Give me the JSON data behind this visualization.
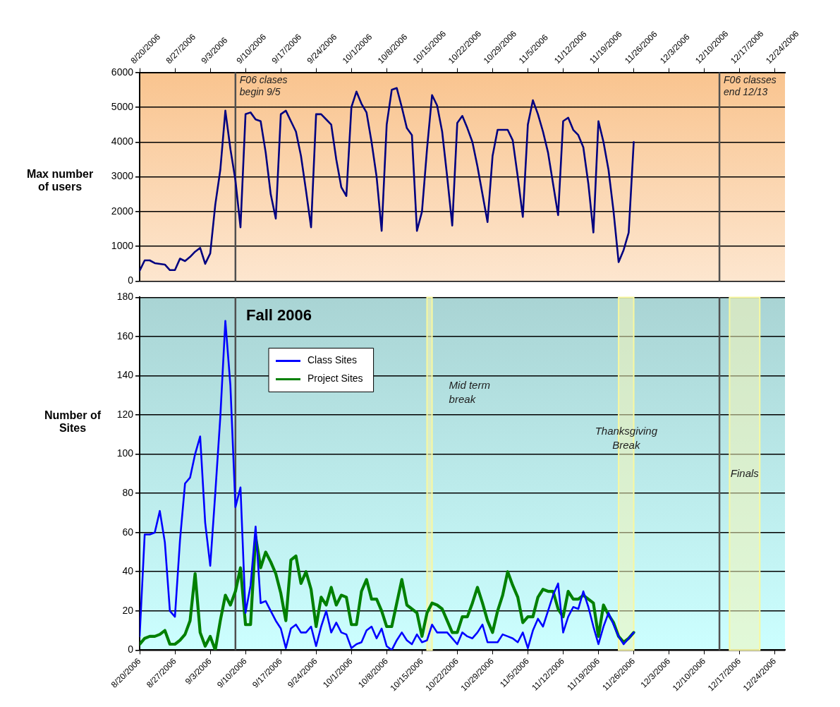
{
  "chart_data": [
    {
      "type": "line",
      "ylabel": "Max number of users",
      "x": [
        "2006-08-20",
        "2006-08-21",
        "2006-08-22",
        "2006-08-23",
        "2006-08-24",
        "2006-08-25",
        "2006-08-26",
        "2006-08-27",
        "2006-08-28",
        "2006-08-29",
        "2006-08-30",
        "2006-08-31",
        "2006-09-01",
        "2006-09-02",
        "2006-09-03",
        "2006-09-04",
        "2006-09-05",
        "2006-09-06",
        "2006-09-07",
        "2006-09-08",
        "2006-09-09",
        "2006-09-10",
        "2006-09-11",
        "2006-09-12",
        "2006-09-13",
        "2006-09-14",
        "2006-09-15",
        "2006-09-16",
        "2006-09-17",
        "2006-09-18",
        "2006-09-19",
        "2006-09-20",
        "2006-09-21",
        "2006-09-22",
        "2006-09-23",
        "2006-09-24",
        "2006-09-25",
        "2006-09-26",
        "2006-09-27",
        "2006-09-28",
        "2006-09-29",
        "2006-09-30",
        "2006-10-01",
        "2006-10-02",
        "2006-10-03",
        "2006-10-04",
        "2006-10-05",
        "2006-10-06",
        "2006-10-07",
        "2006-10-08",
        "2006-10-09",
        "2006-10-10",
        "2006-10-11",
        "2006-10-12",
        "2006-10-13",
        "2006-10-14",
        "2006-10-15",
        "2006-10-16",
        "2006-10-17",
        "2006-10-18",
        "2006-10-19",
        "2006-10-20",
        "2006-10-21",
        "2006-10-22",
        "2006-10-23",
        "2006-10-24",
        "2006-10-25",
        "2006-10-26",
        "2006-10-27",
        "2006-10-28",
        "2006-10-29",
        "2006-10-30",
        "2006-10-31",
        "2006-11-01",
        "2006-11-02",
        "2006-11-03",
        "2006-11-04",
        "2006-11-05",
        "2006-11-06",
        "2006-11-07",
        "2006-11-08",
        "2006-11-09",
        "2006-11-10",
        "2006-11-11",
        "2006-11-12",
        "2006-11-13",
        "2006-11-14",
        "2006-11-15",
        "2006-11-16",
        "2006-11-17",
        "2006-11-18",
        "2006-11-19",
        "2006-11-20",
        "2006-11-21",
        "2006-11-22",
        "2006-11-23",
        "2006-11-24",
        "2006-11-25",
        "2006-11-26"
      ],
      "series": [
        {
          "color": "#000080",
          "values": [
            300,
            600,
            600,
            520,
            500,
            480,
            320,
            320,
            650,
            580,
            700,
            850,
            960,
            500,
            800,
            2200,
            3200,
            4900,
            3800,
            2900,
            1550,
            4800,
            4850,
            4650,
            4600,
            3700,
            2500,
            1800,
            4800,
            4900,
            4600,
            4300,
            3600,
            2600,
            1550,
            4800,
            4800,
            4650,
            4500,
            3500,
            2700,
            2450,
            5000,
            5450,
            5100,
            4850,
            4000,
            3000,
            1450,
            4500,
            5500,
            5550,
            5000,
            4400,
            4200,
            1450,
            2000,
            3800,
            5350,
            5050,
            4300,
            3000,
            1600,
            4550,
            4750,
            4400,
            4000,
            3300,
            2500,
            1700,
            3600,
            4350,
            4350,
            4350,
            4050,
            3000,
            1850,
            4500,
            5200,
            4800,
            4300,
            3700,
            2800,
            1900,
            4600,
            4700,
            4350,
            4200,
            3850,
            2800,
            1400,
            4600,
            4000,
            3200,
            2000,
            550,
            900,
            1400,
            4000
          ]
        }
      ],
      "xlim": [
        "2006-08-20",
        "2006-12-26"
      ],
      "xticks": [
        {
          "value": "2006-08-20",
          "label": "8/20/2006"
        },
        {
          "value": "2006-08-27",
          "label": "8/27/2006"
        },
        {
          "value": "2006-09-03",
          "label": "9/3/2006"
        },
        {
          "value": "2006-09-10",
          "label": "9/10/2006"
        },
        {
          "value": "2006-09-17",
          "label": "9/17/2006"
        },
        {
          "value": "2006-09-24",
          "label": "9/24/2006"
        },
        {
          "value": "2006-10-01",
          "label": "10/1/2006"
        },
        {
          "value": "2006-10-08",
          "label": "10/8/2006"
        },
        {
          "value": "2006-10-15",
          "label": "10/15/2006"
        },
        {
          "value": "2006-10-22",
          "label": "10/22/2006"
        },
        {
          "value": "2006-10-29",
          "label": "10/29/2006"
        },
        {
          "value": "2006-11-05",
          "label": "11/5/2006"
        },
        {
          "value": "2006-11-12",
          "label": "11/12/2006"
        },
        {
          "value": "2006-11-19",
          "label": "11/19/2006"
        },
        {
          "value": "2006-11-26",
          "label": "11/26/2006"
        },
        {
          "value": "2006-12-03",
          "label": "12/3/2006"
        },
        {
          "value": "2006-12-10",
          "label": "12/10/2006"
        },
        {
          "value": "2006-12-17",
          "label": "12/17/2006"
        },
        {
          "value": "2006-12-24",
          "label": "12/24/2006"
        }
      ],
      "ylim": [
        0,
        6000
      ],
      "yticks": [
        0,
        1000,
        2000,
        3000,
        4000,
        5000,
        6000
      ],
      "grid": "y",
      "ref_lines": [
        {
          "axis": "x",
          "value": "2006-09-08",
          "label": "F06 clases begin 9/5",
          "color": "#505050"
        },
        {
          "axis": "x",
          "value": "2006-12-13",
          "label": "F06 classes end 12/13",
          "color": "#505050"
        }
      ]
    },
    {
      "type": "line",
      "ylabel": "Number of Sites",
      "x": [
        "2006-08-20",
        "2006-08-21",
        "2006-08-22",
        "2006-08-23",
        "2006-08-24",
        "2006-08-25",
        "2006-08-26",
        "2006-08-27",
        "2006-08-28",
        "2006-08-29",
        "2006-08-30",
        "2006-08-31",
        "2006-09-01",
        "2006-09-02",
        "2006-09-03",
        "2006-09-04",
        "2006-09-05",
        "2006-09-06",
        "2006-09-07",
        "2006-09-08",
        "2006-09-09",
        "2006-09-10",
        "2006-09-11",
        "2006-09-12",
        "2006-09-13",
        "2006-09-14",
        "2006-09-15",
        "2006-09-16",
        "2006-09-17",
        "2006-09-18",
        "2006-09-19",
        "2006-09-20",
        "2006-09-21",
        "2006-09-22",
        "2006-09-23",
        "2006-09-24",
        "2006-09-25",
        "2006-09-26",
        "2006-09-27",
        "2006-09-28",
        "2006-09-29",
        "2006-09-30",
        "2006-10-01",
        "2006-10-02",
        "2006-10-03",
        "2006-10-04",
        "2006-10-05",
        "2006-10-06",
        "2006-10-07",
        "2006-10-08",
        "2006-10-09",
        "2006-10-10",
        "2006-10-11",
        "2006-10-12",
        "2006-10-13",
        "2006-10-14",
        "2006-10-15",
        "2006-10-16",
        "2006-10-17",
        "2006-10-18",
        "2006-10-19",
        "2006-10-20",
        "2006-10-21",
        "2006-10-22",
        "2006-10-23",
        "2006-10-24",
        "2006-10-25",
        "2006-10-26",
        "2006-10-27",
        "2006-10-28",
        "2006-10-29",
        "2006-10-30",
        "2006-10-31",
        "2006-11-01",
        "2006-11-02",
        "2006-11-03",
        "2006-11-04",
        "2006-11-05",
        "2006-11-06",
        "2006-11-07",
        "2006-11-08",
        "2006-11-09",
        "2006-11-10",
        "2006-11-11",
        "2006-11-12",
        "2006-11-13",
        "2006-11-14",
        "2006-11-15",
        "2006-11-16",
        "2006-11-17",
        "2006-11-18",
        "2006-11-19",
        "2006-11-20",
        "2006-11-21",
        "2006-11-22",
        "2006-11-23",
        "2006-11-24",
        "2006-11-25",
        "2006-11-26"
      ],
      "series": [
        {
          "name": "Class Sites",
          "color": "#0000ff",
          "values": [
            7,
            59,
            59,
            60,
            71,
            55,
            20,
            17,
            56,
            85,
            88,
            100,
            109,
            65,
            43,
            80,
            119,
            168,
            135,
            73,
            83,
            19,
            33,
            63,
            24,
            25,
            20,
            15,
            11,
            1,
            11,
            13,
            9,
            9,
            12,
            2,
            12,
            20,
            9,
            14,
            9,
            8,
            1,
            3,
            4,
            10,
            12,
            6,
            11,
            2,
            0,
            5,
            9,
            5,
            3,
            8,
            4,
            5,
            13,
            9,
            9,
            9,
            6,
            3,
            9,
            7,
            6,
            9,
            13,
            4,
            4,
            4,
            8,
            7,
            6,
            4,
            9,
            1,
            10,
            16,
            12,
            20,
            28,
            34,
            9,
            17,
            22,
            21,
            30,
            22,
            12,
            3,
            12,
            19,
            13,
            7,
            3,
            6,
            9
          ]
        },
        {
          "name": "Project Sites",
          "color": "#008000",
          "values": [
            3,
            6,
            7,
            7,
            8,
            10,
            3,
            3,
            5,
            8,
            15,
            39,
            9,
            2,
            7,
            0,
            15,
            28,
            23,
            30,
            42,
            13,
            13,
            58,
            42,
            50,
            45,
            39,
            29,
            15,
            46,
            48,
            34,
            40,
            31,
            12,
            27,
            23,
            32,
            23,
            28,
            27,
            13,
            13,
            30,
            36,
            26,
            26,
            20,
            12,
            12,
            24,
            36,
            23,
            21,
            19,
            7,
            19,
            24,
            23,
            21,
            15,
            9,
            9,
            17,
            17,
            24,
            32,
            24,
            15,
            9,
            20,
            28,
            40,
            33,
            27,
            14,
            17,
            17,
            27,
            31,
            30,
            30,
            21,
            17,
            30,
            26,
            26,
            28,
            26,
            24,
            7,
            23,
            18,
            14,
            7,
            4,
            6,
            9
          ]
        }
      ],
      "xlim": [
        "2006-08-20",
        "2006-12-26"
      ],
      "xticks": [
        {
          "value": "2006-08-20",
          "label": "8/20/2006"
        },
        {
          "value": "2006-08-27",
          "label": "8/27/2006"
        },
        {
          "value": "2006-09-03",
          "label": "9/3/2006"
        },
        {
          "value": "2006-09-10",
          "label": "9/10/2006"
        },
        {
          "value": "2006-09-17",
          "label": "9/17/2006"
        },
        {
          "value": "2006-09-24",
          "label": "9/24/2006"
        },
        {
          "value": "2006-10-01",
          "label": "10/1/2006"
        },
        {
          "value": "2006-10-08",
          "label": "10/8/2006"
        },
        {
          "value": "2006-10-15",
          "label": "10/15/2006"
        },
        {
          "value": "2006-10-22",
          "label": "10/22/2006"
        },
        {
          "value": "2006-10-29",
          "label": "10/29/2006"
        },
        {
          "value": "2006-11-05",
          "label": "11/5/2006"
        },
        {
          "value": "2006-11-12",
          "label": "11/12/2006"
        },
        {
          "value": "2006-11-19",
          "label": "11/19/2006"
        },
        {
          "value": "2006-11-26",
          "label": "11/26/2006"
        },
        {
          "value": "2006-12-03",
          "label": "12/3/2006"
        },
        {
          "value": "2006-12-10",
          "label": "12/10/2006"
        },
        {
          "value": "2006-12-17",
          "label": "12/17/2006"
        },
        {
          "value": "2006-12-24",
          "label": "12/24/2006"
        }
      ],
      "ylim": [
        0,
        180
      ],
      "yticks": [
        0,
        20,
        40,
        60,
        80,
        100,
        120,
        140,
        160,
        180
      ],
      "grid": "y",
      "legend": "top left",
      "annotations": [
        "Fall 2006"
      ],
      "ref_lines": [
        {
          "axis": "x",
          "value": "2006-09-08",
          "color": "#505050"
        },
        {
          "axis": "x",
          "value": "2006-12-13",
          "color": "#505050"
        }
      ],
      "bands": [
        {
          "axis": "x",
          "from": "2006-10-16",
          "to": "2006-10-17",
          "label": "Mid term break",
          "color": "#f4f4b8"
        },
        {
          "axis": "x",
          "from": "2006-11-23",
          "to": "2006-11-26",
          "label": "Thanksgiving Break",
          "color": "#f4f4b8"
        },
        {
          "axis": "x",
          "from": "2006-12-15",
          "to": "2006-12-21",
          "label": "Finals",
          "color": "#f4f4b8"
        }
      ]
    }
  ]
}
